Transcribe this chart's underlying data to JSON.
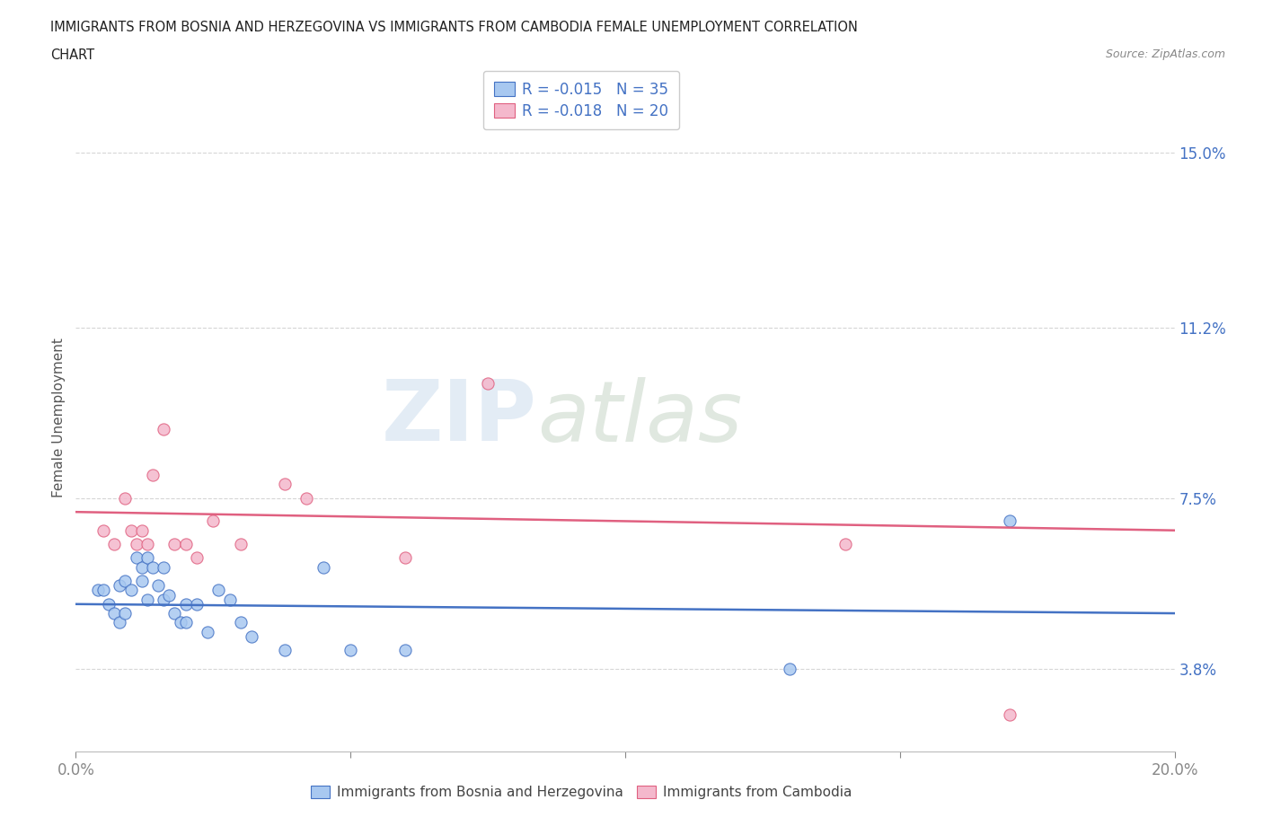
{
  "title_line1": "IMMIGRANTS FROM BOSNIA AND HERZEGOVINA VS IMMIGRANTS FROM CAMBODIA FEMALE UNEMPLOYMENT CORRELATION",
  "title_line2": "CHART",
  "source": "Source: ZipAtlas.com",
  "ylabel": "Female Unemployment",
  "xlim": [
    0.0,
    0.2
  ],
  "ylim": [
    0.02,
    0.165
  ],
  "yticks": [
    0.038,
    0.075,
    0.112,
    0.15
  ],
  "ytick_labels": [
    "3.8%",
    "7.5%",
    "11.2%",
    "15.0%"
  ],
  "xticks": [
    0.0,
    0.05,
    0.1,
    0.15,
    0.2
  ],
  "xtick_labels": [
    "0.0%",
    "",
    "",
    "",
    "20.0%"
  ],
  "legend_bosnia_r": "R = -0.015",
  "legend_bosnia_n": "N = 35",
  "legend_cambodia_r": "R = -0.018",
  "legend_cambodia_n": "N = 20",
  "label_bosnia": "Immigrants from Bosnia and Herzegovina",
  "label_cambodia": "Immigrants from Cambodia",
  "color_bosnia": "#a8c8f0",
  "color_cambodia": "#f4b8cc",
  "line_color_bosnia": "#4472c4",
  "line_color_cambodia": "#e06080",
  "watermark_zip": "ZIP",
  "watermark_atlas": "atlas",
  "bosnia_x": [
    0.004,
    0.005,
    0.006,
    0.007,
    0.008,
    0.008,
    0.009,
    0.009,
    0.01,
    0.011,
    0.012,
    0.012,
    0.013,
    0.013,
    0.014,
    0.015,
    0.016,
    0.016,
    0.017,
    0.018,
    0.019,
    0.02,
    0.02,
    0.022,
    0.024,
    0.026,
    0.028,
    0.03,
    0.032,
    0.038,
    0.045,
    0.05,
    0.06,
    0.13,
    0.17
  ],
  "bosnia_y": [
    0.055,
    0.055,
    0.052,
    0.05,
    0.048,
    0.056,
    0.05,
    0.057,
    0.055,
    0.062,
    0.057,
    0.06,
    0.053,
    0.062,
    0.06,
    0.056,
    0.053,
    0.06,
    0.054,
    0.05,
    0.048,
    0.052,
    0.048,
    0.052,
    0.046,
    0.055,
    0.053,
    0.048,
    0.045,
    0.042,
    0.06,
    0.042,
    0.042,
    0.038,
    0.07
  ],
  "cambodia_x": [
    0.005,
    0.007,
    0.009,
    0.01,
    0.011,
    0.012,
    0.013,
    0.014,
    0.016,
    0.018,
    0.02,
    0.022,
    0.025,
    0.03,
    0.038,
    0.042,
    0.06,
    0.075,
    0.14,
    0.17
  ],
  "cambodia_y": [
    0.068,
    0.065,
    0.075,
    0.068,
    0.065,
    0.068,
    0.065,
    0.08,
    0.09,
    0.065,
    0.065,
    0.062,
    0.07,
    0.065,
    0.078,
    0.075,
    0.062,
    0.1,
    0.065,
    0.028
  ],
  "bosnia_trendline": [
    0.052,
    0.05
  ],
  "cambodia_trendline": [
    0.072,
    0.068
  ]
}
